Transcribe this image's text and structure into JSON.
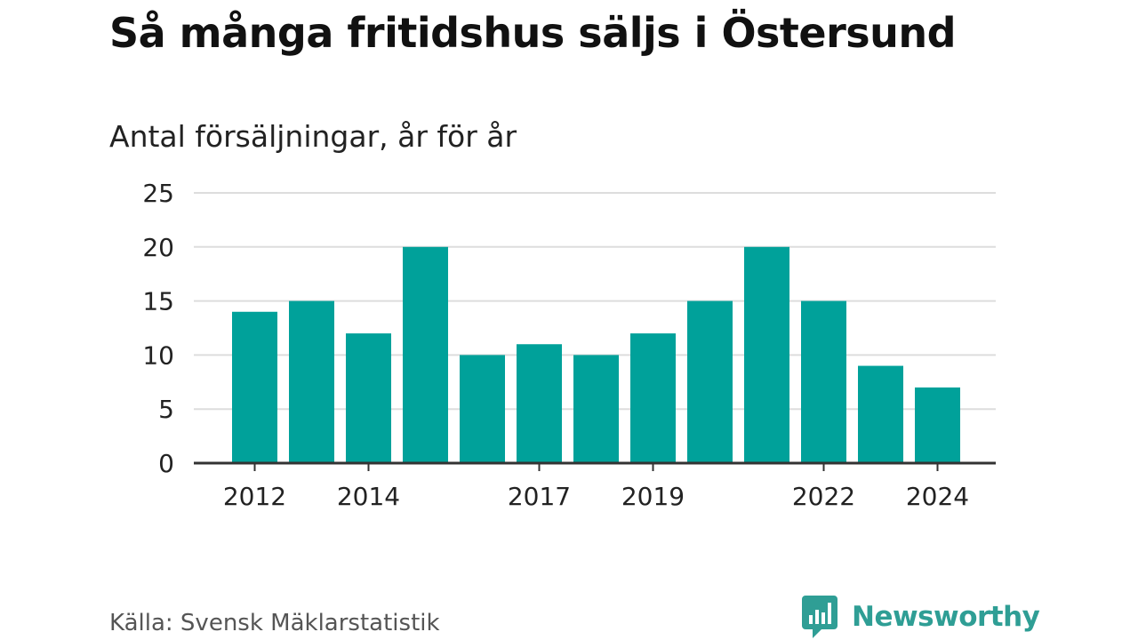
{
  "title": "Så många fritidshus säljs i Östersund",
  "subtitle": "Antal försäljningar, år för år",
  "source": "Källa: Svensk Mäklarstatistik",
  "brand": {
    "name": "Newsworthy",
    "icon": "newsworthy-logo-icon",
    "color": "#2f9e95"
  },
  "colors": {
    "bar": "#00a19a",
    "grid": "#dddddd",
    "axis": "#333333",
    "text": "#222222"
  },
  "chart_data": {
    "type": "bar",
    "title": "Så många fritidshus säljs i Östersund",
    "subtitle": "Antal försäljningar, år för år",
    "categories": [
      "2012",
      "2013",
      "2014",
      "2015",
      "2016",
      "2017",
      "2018",
      "2019",
      "2020",
      "2021",
      "2022",
      "2023",
      "2024"
    ],
    "values": [
      14,
      15,
      12,
      20,
      10,
      11,
      10,
      12,
      15,
      20,
      15,
      9,
      7
    ],
    "x_tick_labels": [
      "2012",
      "2014",
      "2017",
      "2019",
      "2022",
      "2024"
    ],
    "y_ticks": [
      0,
      5,
      10,
      15,
      20,
      25
    ],
    "ylim": [
      0,
      25
    ],
    "xlabel": "",
    "ylabel": "",
    "grid": true,
    "legend": false
  }
}
